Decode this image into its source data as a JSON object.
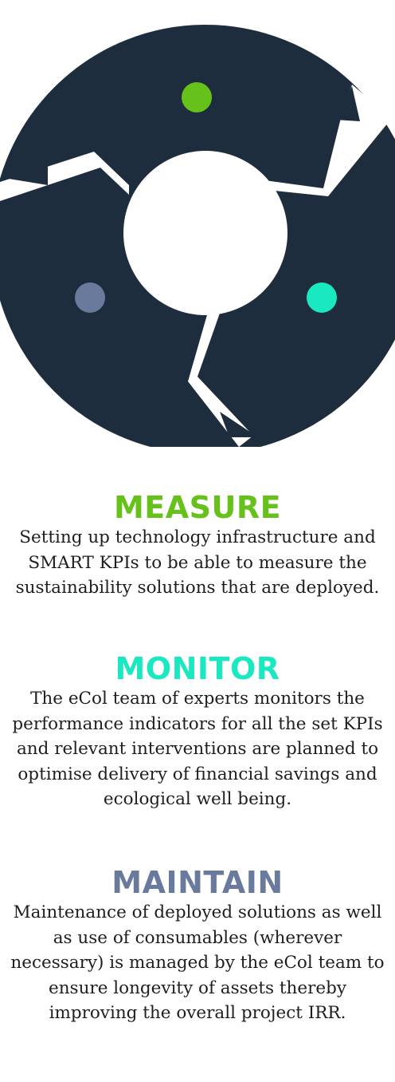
{
  "graphic": {
    "ring_color": "#1e2d3d",
    "dot_colors": {
      "measure": "#66c21a",
      "monitor": "#19e8c0",
      "maintain": "#6a7a9c"
    }
  },
  "sections": {
    "measure": {
      "title": "MEASURE",
      "color": "#66c21a",
      "body": "Setting up technology infrastructure and SMART KPIs to be able to measure the sustainability solutions that are deployed."
    },
    "monitor": {
      "title": "MONITOR",
      "color": "#19e8c0",
      "body": "The eCol team of experts monitors the performance indicators for all the set KPIs and relevant interventions are planned to optimise delivery of financial savings and ecological well being."
    },
    "maintain": {
      "title": "MAINTAIN",
      "color": "#6a7a9c",
      "body": "Maintenance of deployed solutions as well as use of consumables (wherever necessary) is managed by the eCol team to ensure longevity of assets thereby improving the overall project IRR."
    }
  }
}
